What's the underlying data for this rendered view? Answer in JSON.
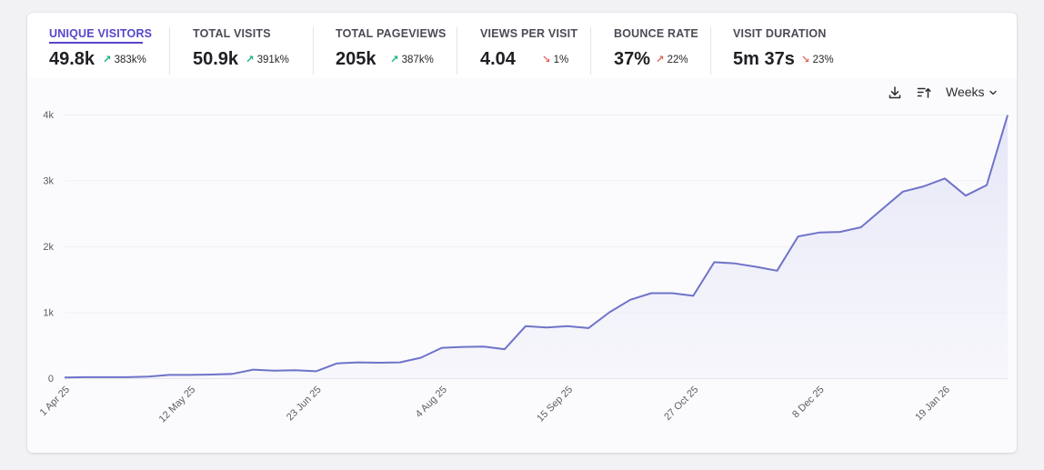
{
  "metrics": [
    {
      "label": "UNIQUE VISITORS",
      "value": "49.8k",
      "change": "383k%",
      "direction": "up",
      "active": true
    },
    {
      "label": "TOTAL VISITS",
      "value": "50.9k",
      "change": "391k%",
      "direction": "up"
    },
    {
      "label": "TOTAL PAGEVIEWS",
      "value": "205k",
      "change": "387k%",
      "direction": "up"
    },
    {
      "label": "VIEWS PER VISIT",
      "value": "4.04",
      "change": "1%",
      "direction": "down"
    },
    {
      "label": "BOUNCE RATE",
      "value": "37%",
      "change": "22%",
      "direction": "up"
    },
    {
      "label": "VISIT DURATION",
      "value": "5m 37s",
      "change": "23%",
      "direction": "down"
    }
  ],
  "toolbar": {
    "interval_label": "Weeks",
    "download_icon": "download-icon",
    "sort_icon": "sort-icon",
    "dropdown_icon": "chevron-down-icon"
  },
  "colors": {
    "accent": "#5546c9",
    "line": "#6f73c8",
    "fill": "#e8e9f8",
    "up": "#19b288",
    "down": "#e4635e"
  },
  "chart_data": {
    "type": "area",
    "title": "Unique visitors",
    "xlabel": "",
    "ylabel": "",
    "ylim": [
      0,
      4000
    ],
    "y_ticks": [
      0,
      1000,
      2000,
      3000,
      4000
    ],
    "y_tick_labels": [
      "0",
      "1k",
      "2k",
      "3k",
      "4k"
    ],
    "x_tick_labels": [
      "1 Apr 25",
      "12 May 25",
      "23 Jun 25",
      "4 Aug 25",
      "15 Sep 25",
      "27 Oct 25",
      "8 Dec 25",
      "19 Jan 26"
    ],
    "x_tick_indices": [
      0,
      6,
      12,
      18,
      24,
      30,
      36,
      42
    ],
    "series": [
      {
        "name": "Unique visitors",
        "values": [
          10,
          15,
          15,
          15,
          25,
          50,
          50,
          55,
          65,
          130,
          115,
          120,
          105,
          225,
          240,
          235,
          240,
          310,
          460,
          475,
          480,
          440,
          790,
          770,
          790,
          760,
          1000,
          1190,
          1290,
          1290,
          1250,
          1760,
          1740,
          1690,
          1630,
          2150,
          2210,
          2220,
          2290,
          2560,
          2830,
          2910,
          3030,
          2770,
          2930,
          3990
        ]
      }
    ],
    "grid": true
  }
}
